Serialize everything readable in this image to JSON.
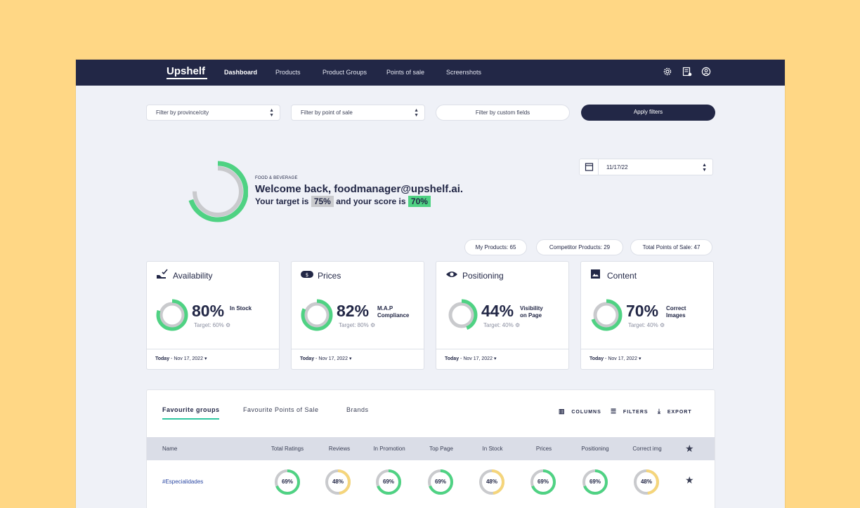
{
  "app": {
    "logo": "Upshelf"
  },
  "nav": {
    "items": [
      "Dashboard",
      "Products",
      "Product Groups",
      "Points of sale",
      "Screenshots"
    ],
    "active": "Dashboard"
  },
  "filters": {
    "province": "Filter by province/city",
    "point_of_sale": "Filter by point of sale",
    "custom_fields": "Filter by custom fields",
    "apply": "Apply filters"
  },
  "date_picker": {
    "value": "11/17/22"
  },
  "summary": {
    "category": "FOOD & BEVERAGE",
    "welcome": "Welcome back, foodmanager@upshelf.ai.",
    "target_prefix": "Your target is",
    "target_value": "75%",
    "score_prefix": "and your score is",
    "score_value": "70%",
    "score_fraction": 0.7,
    "target_fraction": 0.75
  },
  "pills": {
    "my_products": "My Products: 65",
    "competitor_products": "Competitor Products: 29",
    "total_pos": "Total Points of Sale: 47"
  },
  "cards": [
    {
      "title": "Availability",
      "pct": "80%",
      "label1": "In Stock",
      "label2": "",
      "target": "Target: 60%",
      "date_bold": "Today",
      "date": " - Nov 17, 2022",
      "fraction": 0.8
    },
    {
      "title": "Prices",
      "pct": "82%",
      "label1": "M.A.P",
      "label2": "Compliance",
      "target": "Target: 80%",
      "date_bold": "Today",
      "date": " - Nov 17, 2022",
      "fraction": 0.82
    },
    {
      "title": "Positioning",
      "pct": "44%",
      "label1": "Visibility",
      "label2": "on Page",
      "target": "Target: 40%",
      "date_bold": "Today",
      "date": " - Nov 17, 2022",
      "fraction": 0.44
    },
    {
      "title": "Content",
      "pct": "70%",
      "label1": "Correct",
      "label2": "Images",
      "target": "Target: 40%",
      "date_bold": "Today",
      "date": " - Nov 17, 2022",
      "fraction": 0.7
    }
  ],
  "tabs": [
    "Favourite groups",
    "Favourite Points of Sale",
    "Brands"
  ],
  "toolbar": {
    "columns": "COLUMNS",
    "filters": "FILTERS",
    "export": "EXPORT"
  },
  "table": {
    "headers": [
      "Name",
      "Total Ratings",
      "Reviews",
      "In Promotion",
      "Top Page",
      "In Stock",
      "Prices",
      "Positioning",
      "Correct img"
    ],
    "rows": [
      {
        "name": "#Especialidades",
        "cells": [
          {
            "text": "69%",
            "value": 0.69,
            "color": "#4FD283"
          },
          {
            "text": "48%",
            "value": 0.48,
            "color": "#F5D57B"
          },
          {
            "text": "69%",
            "value": 0.69,
            "color": "#4FD283"
          },
          {
            "text": "69%",
            "value": 0.69,
            "color": "#4FD283"
          },
          {
            "text": "48%",
            "value": 0.48,
            "color": "#F5D57B"
          },
          {
            "text": "69%",
            "value": 0.69,
            "color": "#4FD283"
          },
          {
            "text": "69%",
            "value": 0.69,
            "color": "#4FD283"
          },
          {
            "text": "48%",
            "value": 0.48,
            "color": "#F5D57B"
          }
        ]
      }
    ]
  },
  "colors": {
    "navy": "#222746",
    "green": "#4FD283",
    "yellow": "#F5D57B",
    "grey": "#C9CACD",
    "teal": "#2FC7A0"
  }
}
